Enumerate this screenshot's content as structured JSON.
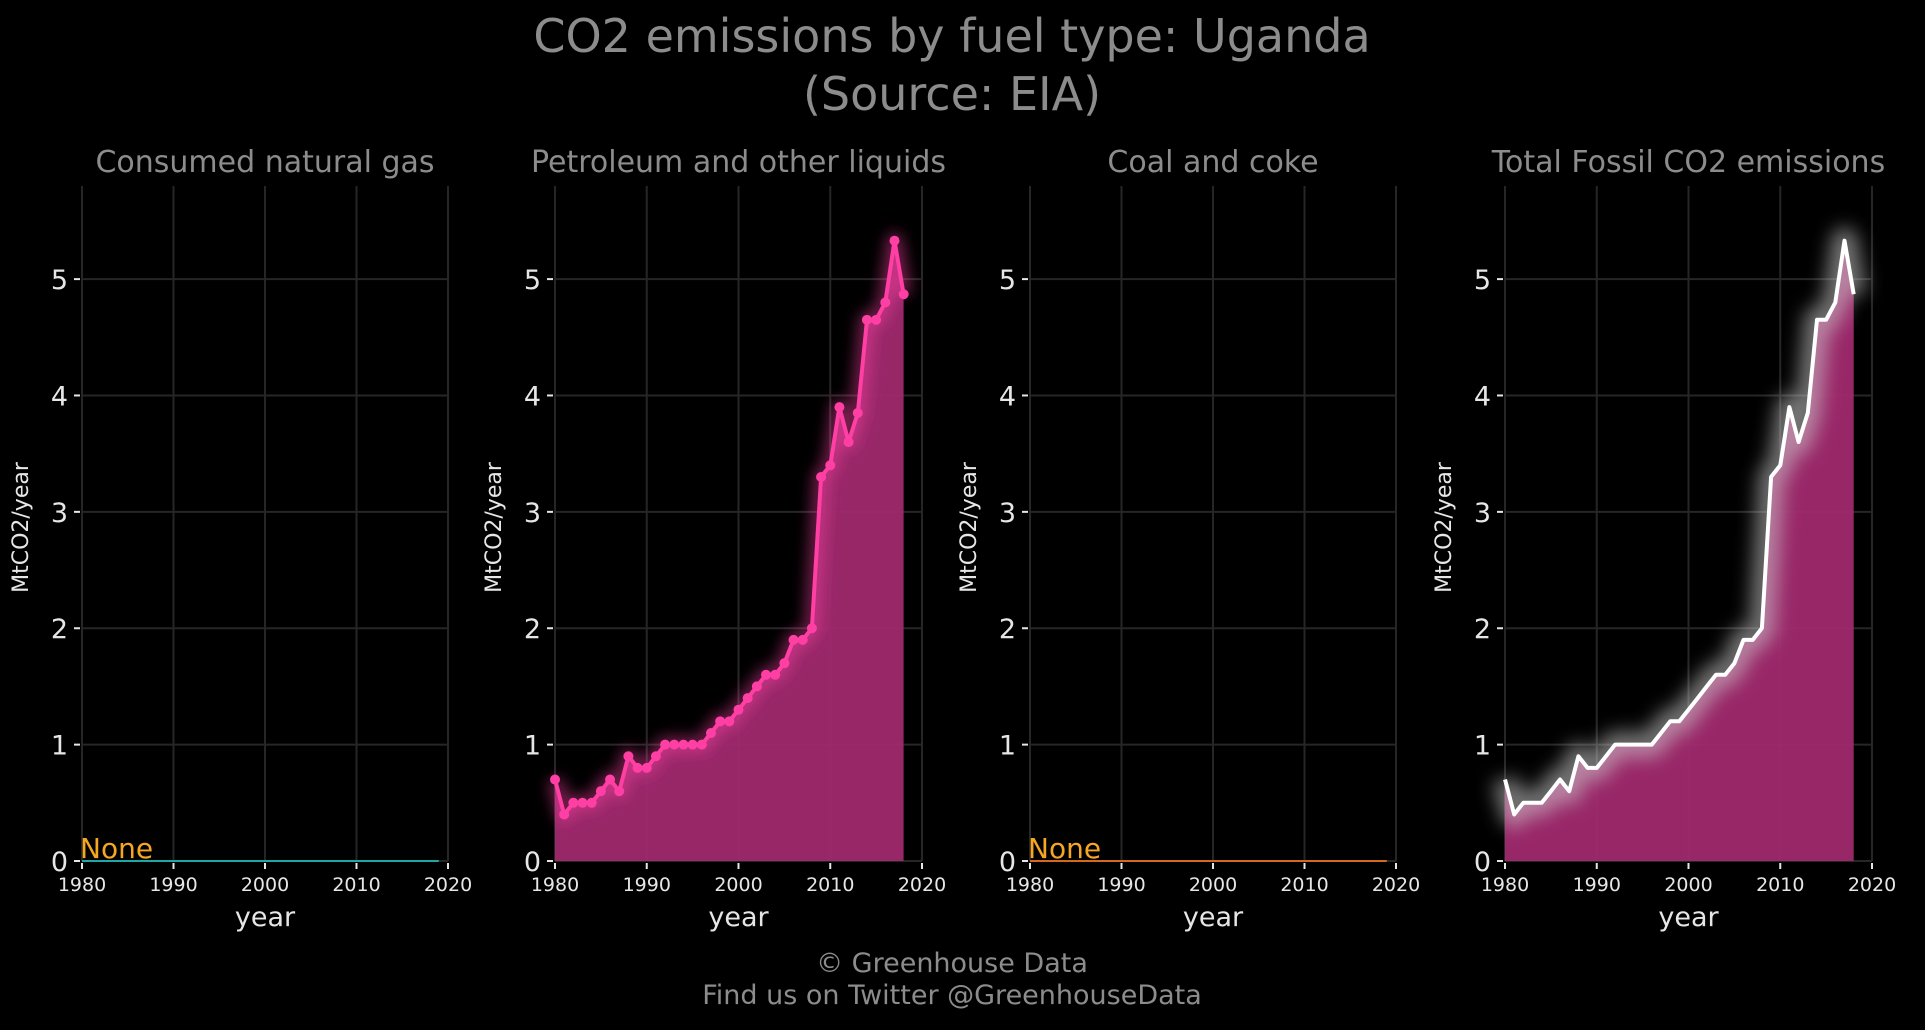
{
  "title_line1": "CO2 emissions by fuel type: Uganda",
  "title_line2": "(Source: EIA)",
  "footer_line1": "© Greenhouse Data",
  "footer_line2": "Find us on Twitter @GreenhouseData",
  "colors": {
    "background": "#000000",
    "petroleum": "#ff3fa4",
    "area_fill": "#a0296e",
    "natural_gas_line": "#1fa6a6",
    "coal_line": "#d2691e",
    "total_line": "#ffffff",
    "none_label": "#f5a623"
  },
  "chart_data": [
    {
      "type": "line",
      "title": "Consumed natural gas",
      "xlabel": "year",
      "ylabel": "MtCO2/year",
      "xlim": [
        1980,
        2020
      ],
      "ylim": [
        0,
        5.8
      ],
      "x_ticks": [
        "1980",
        "1990",
        "2000",
        "2010",
        "2020"
      ],
      "y_ticks": [
        "0",
        "1",
        "2",
        "3",
        "4",
        "5"
      ],
      "annotation": "None",
      "series": [
        {
          "x": [
            1980,
            2019
          ],
          "values": [
            0,
            0
          ]
        }
      ]
    },
    {
      "type": "area",
      "title": "Petroleum and other liquids",
      "xlabel": "year",
      "ylabel": "MtCO2/year",
      "xlim": [
        1980,
        2020
      ],
      "ylim": [
        0,
        5.8
      ],
      "x_ticks": [
        "1980",
        "1990",
        "2000",
        "2010",
        "2020"
      ],
      "y_ticks": [
        "0",
        "1",
        "2",
        "3",
        "4",
        "5"
      ],
      "series": [
        {
          "x": [
            1980,
            1981,
            1982,
            1983,
            1984,
            1985,
            1986,
            1987,
            1988,
            1989,
            1990,
            1991,
            1992,
            1993,
            1994,
            1995,
            1996,
            1997,
            1998,
            1999,
            2000,
            2001,
            2002,
            2003,
            2004,
            2005,
            2006,
            2007,
            2008,
            2009,
            2010,
            2011,
            2012,
            2013,
            2014,
            2015,
            2016,
            2017,
            2018
          ],
          "values": [
            0.7,
            0.4,
            0.5,
            0.5,
            0.5,
            0.6,
            0.7,
            0.6,
            0.9,
            0.8,
            0.8,
            0.9,
            1.0,
            1.0,
            1.0,
            1.0,
            1.0,
            1.1,
            1.2,
            1.2,
            1.3,
            1.4,
            1.5,
            1.6,
            1.6,
            1.7,
            1.9,
            1.9,
            2.0,
            3.3,
            3.4,
            3.9,
            3.6,
            3.85,
            4.65,
            4.65,
            4.8,
            5.33,
            4.87
          ]
        }
      ]
    },
    {
      "type": "line",
      "title": "Coal and coke",
      "xlabel": "year",
      "ylabel": "MtCO2/year",
      "xlim": [
        1980,
        2020
      ],
      "ylim": [
        0,
        5.8
      ],
      "x_ticks": [
        "1980",
        "1990",
        "2000",
        "2010",
        "2020"
      ],
      "y_ticks": [
        "0",
        "1",
        "2",
        "3",
        "4",
        "5"
      ],
      "annotation": "None",
      "series": [
        {
          "x": [
            1980,
            2019
          ],
          "values": [
            0,
            0
          ]
        }
      ]
    },
    {
      "type": "area",
      "title": "Total Fossil CO2 emissions",
      "xlabel": "year",
      "ylabel": "MtCO2/year",
      "xlim": [
        1980,
        2020
      ],
      "ylim": [
        0,
        5.8
      ],
      "x_ticks": [
        "1980",
        "1990",
        "2000",
        "2010",
        "2020"
      ],
      "y_ticks": [
        "0",
        "1",
        "2",
        "3",
        "4",
        "5"
      ],
      "series": [
        {
          "x": [
            1980,
            1981,
            1982,
            1983,
            1984,
            1985,
            1986,
            1987,
            1988,
            1989,
            1990,
            1991,
            1992,
            1993,
            1994,
            1995,
            1996,
            1997,
            1998,
            1999,
            2000,
            2001,
            2002,
            2003,
            2004,
            2005,
            2006,
            2007,
            2008,
            2009,
            2010,
            2011,
            2012,
            2013,
            2014,
            2015,
            2016,
            2017,
            2018
          ],
          "values": [
            0.7,
            0.4,
            0.5,
            0.5,
            0.5,
            0.6,
            0.7,
            0.6,
            0.9,
            0.8,
            0.8,
            0.9,
            1.0,
            1.0,
            1.0,
            1.0,
            1.0,
            1.1,
            1.2,
            1.2,
            1.3,
            1.4,
            1.5,
            1.6,
            1.6,
            1.7,
            1.9,
            1.9,
            2.0,
            3.3,
            3.4,
            3.9,
            3.6,
            3.85,
            4.65,
            4.65,
            4.8,
            5.33,
            4.87
          ]
        }
      ]
    }
  ]
}
